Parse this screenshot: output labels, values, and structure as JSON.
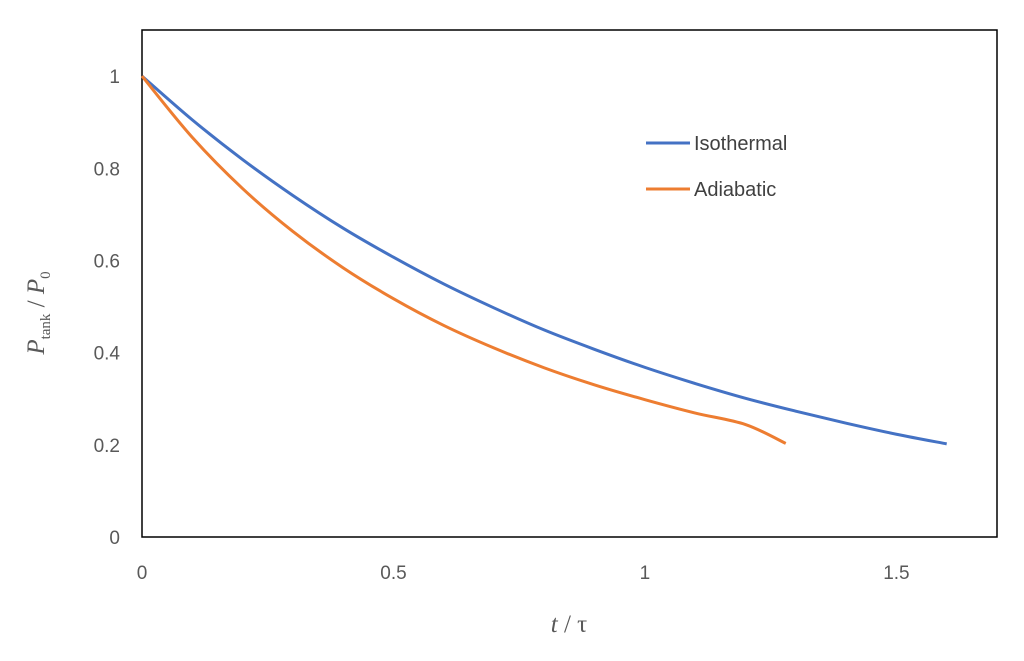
{
  "chart_data": {
    "type": "line",
    "title": "",
    "xlabel": {
      "main": "t",
      "sep": " / ",
      "tail": "τ"
    },
    "ylabel": {
      "main": "P",
      "sub": "tank",
      "sep": " / ",
      "main2": "P",
      "sub2": "0"
    },
    "xlim": [
      0,
      1.7
    ],
    "ylim": [
      0,
      1.1
    ],
    "xticks": [
      0,
      0.5,
      1,
      1.5
    ],
    "xtick_labels": [
      "0",
      "0.5",
      "1",
      "1.5"
    ],
    "yticks": [
      0,
      0.2,
      0.4,
      0.6,
      0.8,
      1
    ],
    "ytick_labels": [
      "0",
      "0.2",
      "0.4",
      "0.6",
      "0.8",
      "1"
    ],
    "grid": false,
    "legend_position": "upper-right inside",
    "series": [
      {
        "name": "Isothermal",
        "color": "#4472C4",
        "x": [
          0,
          0.1,
          0.2,
          0.3,
          0.4,
          0.5,
          0.6,
          0.7,
          0.8,
          0.9,
          1.0,
          1.1,
          1.2,
          1.3,
          1.4,
          1.5,
          1.6
        ],
        "y": [
          1.0,
          0.905,
          0.819,
          0.741,
          0.67,
          0.607,
          0.549,
          0.497,
          0.449,
          0.407,
          0.368,
          0.333,
          0.301,
          0.273,
          0.247,
          0.223,
          0.202
        ]
      },
      {
        "name": "Adiabatic",
        "color": "#ED7D31",
        "x": [
          0,
          0.1,
          0.2,
          0.3,
          0.4,
          0.5,
          0.6,
          0.7,
          0.8,
          0.9,
          1.0,
          1.1,
          1.2,
          1.28
        ],
        "y": [
          1.0,
          0.867,
          0.756,
          0.663,
          0.584,
          0.517,
          0.459,
          0.41,
          0.367,
          0.33,
          0.298,
          0.269,
          0.244,
          0.203
        ]
      }
    ]
  }
}
